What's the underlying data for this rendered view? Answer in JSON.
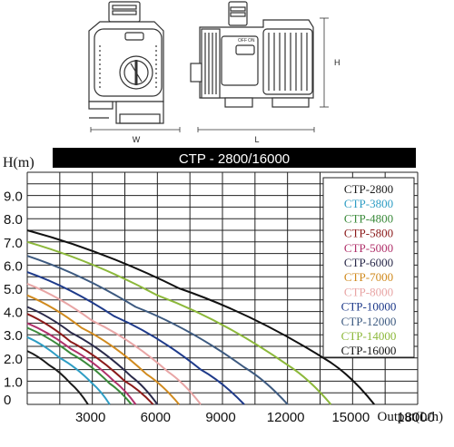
{
  "diagram": {
    "width_label": "W",
    "length_label": "L",
    "height_label": "H",
    "switch_labels": [
      "OFF",
      "ON"
    ]
  },
  "chart_data": {
    "type": "line",
    "title": "CTP - 2800/16000",
    "ylabel": "H(m)",
    "xlabel": "Output(L/h)",
    "xlim": [
      0,
      18000
    ],
    "ylim": [
      0,
      10
    ],
    "x_ticks": [
      {
        "value": 3000,
        "label": "3000"
      },
      {
        "value": 6000,
        "label": "6000"
      },
      {
        "value": 9000,
        "label": "9000"
      },
      {
        "value": 12000,
        "label": "12000"
      },
      {
        "value": 15000,
        "label": "15000"
      },
      {
        "value": 18000,
        "label": "18000"
      }
    ],
    "y_ticks": [
      {
        "value": 0,
        "label": "0"
      },
      {
        "value": 1,
        "label": "1.0"
      },
      {
        "value": 2,
        "label": "2.0"
      },
      {
        "value": 3,
        "label": "3.0"
      },
      {
        "value": 4,
        "label": "4.0"
      },
      {
        "value": 5,
        "label": "5.0"
      },
      {
        "value": 6,
        "label": "6.0"
      },
      {
        "value": 7,
        "label": "7.0"
      },
      {
        "value": 8,
        "label": "8.0"
      },
      {
        "value": 9,
        "label": "9.0"
      }
    ],
    "grid": true,
    "legend_position": "top-right",
    "series": [
      {
        "name": "CTP-2800",
        "color": "#1a1a1a",
        "points": [
          [
            0,
            2.3
          ],
          [
            1000,
            1.7
          ],
          [
            2000,
            0.9
          ],
          [
            2800,
            0
          ]
        ]
      },
      {
        "name": "CTP-3800",
        "color": "#2e9dc4",
        "points": [
          [
            0,
            2.9
          ],
          [
            1500,
            2.0
          ],
          [
            3000,
            0.9
          ],
          [
            3800,
            0
          ]
        ]
      },
      {
        "name": "CTP-4800",
        "color": "#3a8a3a",
        "points": [
          [
            0,
            3.3
          ],
          [
            2000,
            2.2
          ],
          [
            3800,
            0.9
          ],
          [
            4800,
            0
          ]
        ]
      },
      {
        "name": "CTP-5800",
        "color": "#8b1a1a",
        "points": [
          [
            0,
            3.9
          ],
          [
            2000,
            2.7
          ],
          [
            4500,
            1.0
          ],
          [
            5800,
            0
          ]
        ]
      },
      {
        "name": "CTP-5000",
        "color": "#b0306a",
        "points": [
          [
            0,
            3.5
          ],
          [
            2000,
            2.4
          ],
          [
            4000,
            1.0
          ],
          [
            5000,
            0
          ]
        ]
      },
      {
        "name": "CTP-6000",
        "color": "#2a2a4a",
        "points": [
          [
            0,
            4.2
          ],
          [
            2000,
            3.1
          ],
          [
            4800,
            1.2
          ],
          [
            6000,
            0
          ]
        ]
      },
      {
        "name": "CTP-7000",
        "color": "#d08a1e",
        "points": [
          [
            0,
            4.7
          ],
          [
            2500,
            3.3
          ],
          [
            5500,
            1.3
          ],
          [
            7000,
            0
          ]
        ]
      },
      {
        "name": "CTP-8000",
        "color": "#e8a5a5",
        "points": [
          [
            0,
            5.2
          ],
          [
            3000,
            3.6
          ],
          [
            6500,
            1.4
          ],
          [
            8000,
            0
          ]
        ]
      },
      {
        "name": "CTP-10000",
        "color": "#1e3a8a",
        "points": [
          [
            0,
            5.7
          ],
          [
            4000,
            3.8
          ],
          [
            8000,
            1.5
          ],
          [
            10000,
            0
          ]
        ]
      },
      {
        "name": "CTP-12000",
        "color": "#3d5a80",
        "points": [
          [
            0,
            6.4
          ],
          [
            5000,
            4.2
          ],
          [
            10000,
            1.6
          ],
          [
            12000,
            0
          ]
        ]
      },
      {
        "name": "CTP-14000",
        "color": "#8cb83a",
        "points": [
          [
            0,
            7.0
          ],
          [
            6000,
            4.7
          ],
          [
            12000,
            1.7
          ],
          [
            14000,
            0
          ]
        ]
      },
      {
        "name": "CTP-16000",
        "color": "#111111",
        "points": [
          [
            0,
            7.5
          ],
          [
            7000,
            5.0
          ],
          [
            14000,
            1.8
          ],
          [
            16000,
            0
          ]
        ]
      }
    ]
  }
}
